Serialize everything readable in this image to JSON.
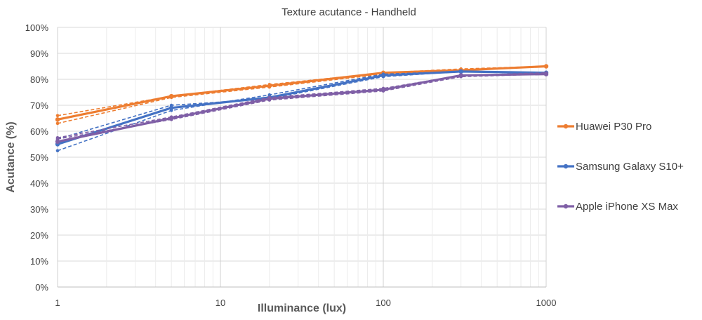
{
  "chart_data": {
    "type": "line",
    "title": "Texture acutance - Handheld",
    "xlabel": "Illuminance (lux)",
    "ylabel": "Acutance (%)",
    "xscale": "log",
    "xlim": [
      1,
      1000
    ],
    "ylim": [
      0,
      100
    ],
    "x_ticks": [
      "1",
      "10",
      "100",
      "1000"
    ],
    "y_ticks": [
      "0%",
      "10%",
      "20%",
      "30%",
      "40%",
      "50%",
      "60%",
      "70%",
      "80%",
      "90%",
      "100%"
    ],
    "grid": true,
    "legend_position": "right",
    "x": [
      1,
      5,
      20,
      100,
      300,
      1000
    ],
    "series": [
      {
        "name": "Huawei P30 Pro",
        "color": "#ED7D31",
        "values": [
          64.5,
          73.5,
          77.5,
          82.5,
          83.5,
          85
        ],
        "variants": [
          [
            66,
            73.5,
            78,
            82.5,
            84,
            85
          ],
          [
            63,
            73,
            77,
            82,
            83.5,
            85
          ]
        ]
      },
      {
        "name": "Samsung Galaxy S10+",
        "color": "#4472C4",
        "values": [
          55,
          69,
          73,
          81.5,
          83,
          82.5
        ],
        "variants": [
          [
            52.5,
            68,
            74,
            82,
            83,
            82.5
          ],
          [
            57,
            70,
            72.5,
            81,
            83,
            82
          ]
        ]
      },
      {
        "name": "Apple iPhone XS Max",
        "color": "#7F5FA6",
        "values": [
          56,
          65,
          72.5,
          76,
          81.5,
          82
        ],
        "variants": [
          [
            57,
            64.5,
            72,
            75.5,
            81,
            82
          ],
          [
            57.5,
            65.5,
            73,
            76.5,
            81.5,
            82.5
          ]
        ]
      }
    ]
  }
}
